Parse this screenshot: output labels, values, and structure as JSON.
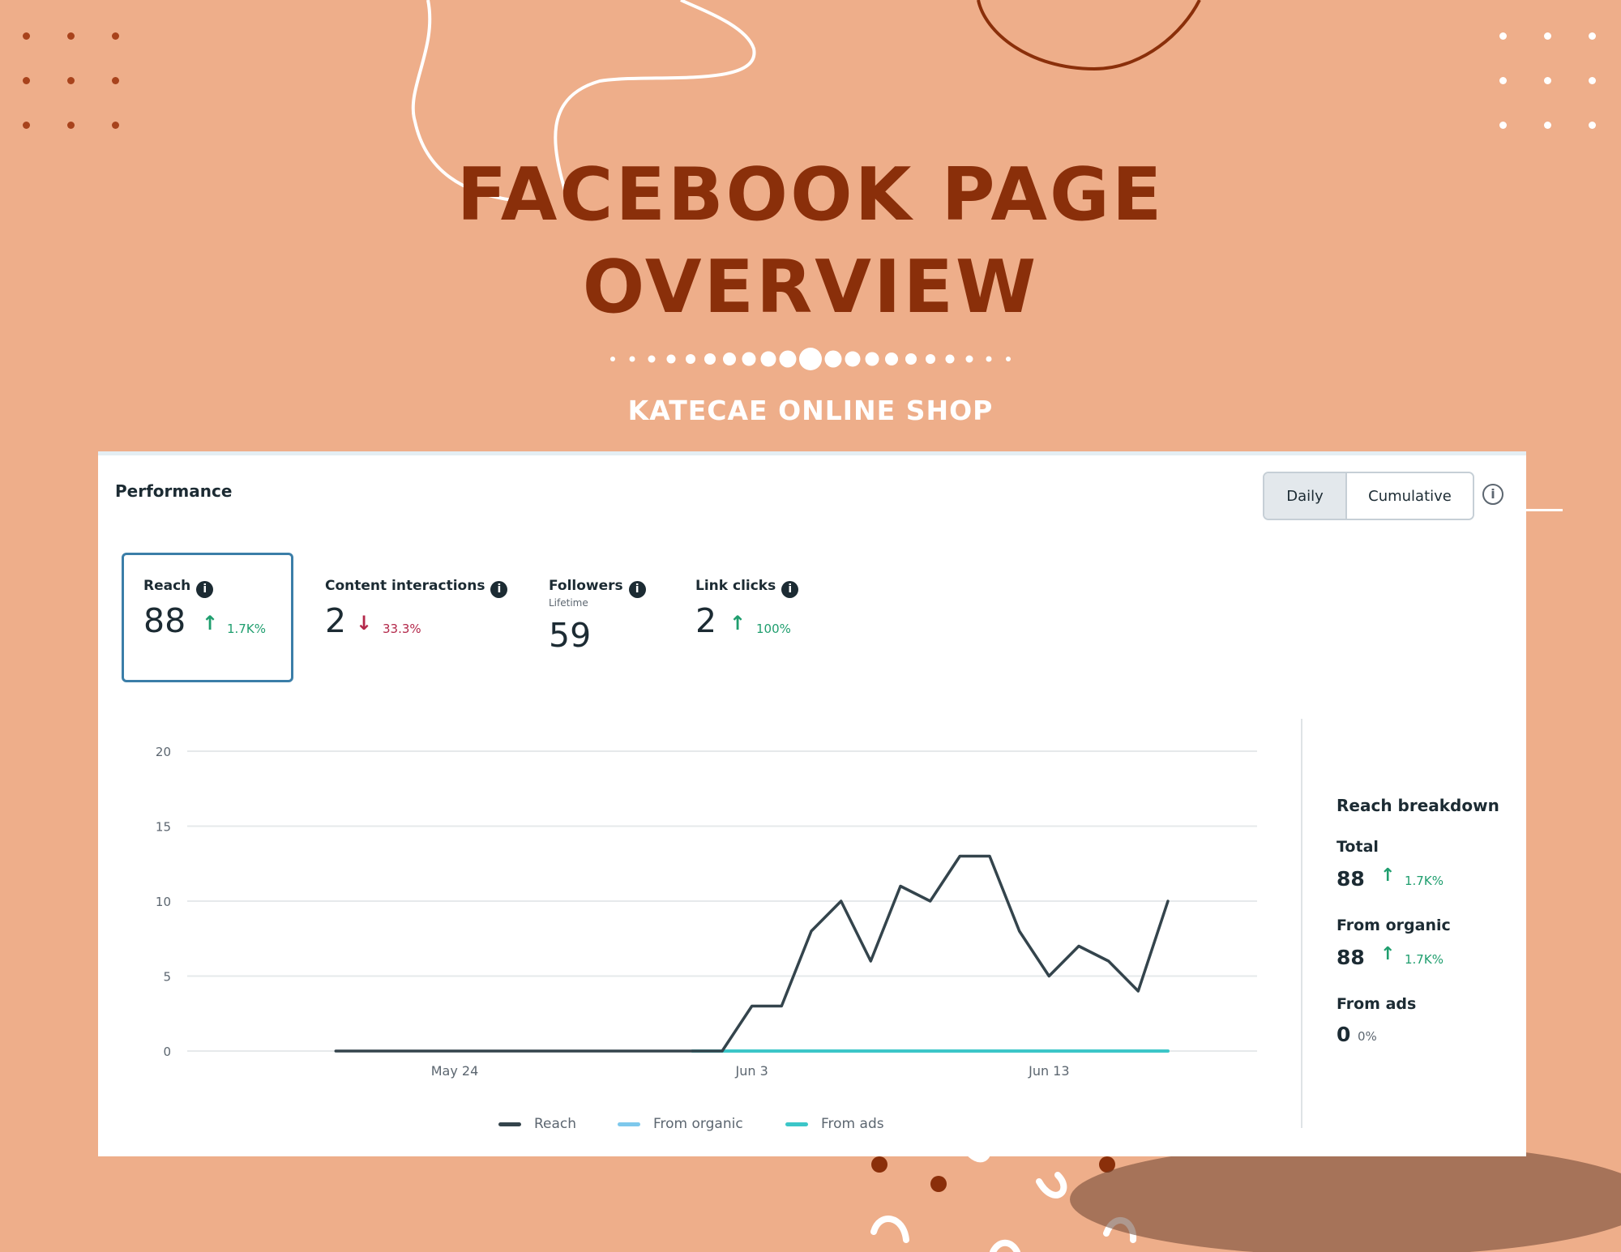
{
  "header": {
    "title_line1": "FACEBOOK PAGE",
    "title_line2": "OVERVIEW",
    "subtitle": "KATECAE ONLINE SHOP"
  },
  "colors": {
    "background": "#eeae8a",
    "title": "#8a2f0a",
    "accent_up": "#1f9e6e",
    "accent_down": "#b3284a",
    "reach_line": "#34444c",
    "organic_line": "#7ec8ec",
    "ads_line": "#3cc6c8"
  },
  "performance": {
    "title": "Performance",
    "toggle": {
      "daily": "Daily",
      "cumulative": "Cumulative",
      "selected": "Daily"
    },
    "info_icon": "info-icon",
    "metrics": [
      {
        "label": "Reach",
        "value": "88",
        "change": "1.7K%",
        "direction": "up",
        "selected": true
      },
      {
        "label": "Content interactions",
        "value": "2",
        "change": "33.3%",
        "direction": "down"
      },
      {
        "label": "Followers",
        "sublabel": "Lifetime",
        "value": "59"
      },
      {
        "label": "Link clicks",
        "value": "2",
        "change": "100%",
        "direction": "up"
      }
    ]
  },
  "breakdown": {
    "title": "Reach breakdown",
    "items": [
      {
        "label": "Total",
        "value": "88",
        "change": "1.7K%"
      },
      {
        "label": "From organic",
        "value": "88",
        "change": "1.7K%"
      },
      {
        "label": "From ads",
        "value": "0",
        "change": "0%"
      }
    ]
  },
  "chart_data": {
    "type": "line",
    "title": "",
    "ylim": [
      0,
      20
    ],
    "yticks": [
      0,
      5,
      10,
      15,
      20
    ],
    "xtick_labels": [
      "May 24",
      "Jun 3",
      "Jun 13"
    ],
    "xtick_positions": [
      9,
      19,
      29
    ],
    "grid": true,
    "legend_position": "bottom",
    "x": [
      0,
      1,
      2,
      3,
      4,
      5,
      6,
      7,
      8,
      9,
      10,
      11,
      12,
      13,
      14,
      15,
      16,
      17,
      18,
      19,
      20,
      21,
      22,
      23,
      24,
      25,
      26,
      27,
      28,
      29,
      30,
      31,
      32,
      33,
      34,
      35,
      36
    ],
    "series": [
      {
        "name": "Reach",
        "color": "#34444c",
        "values": [
          null,
          null,
          null,
          null,
          null,
          0,
          0,
          0,
          0,
          0,
          0,
          0,
          0,
          0,
          0,
          0,
          0,
          0,
          0,
          3,
          3,
          8,
          10,
          6,
          11,
          10,
          13,
          13,
          8,
          5,
          7,
          6,
          4,
          10,
          null,
          null,
          null
        ]
      },
      {
        "name": "From organic",
        "color": "#7ec8ec",
        "values": [
          null,
          null,
          null,
          null,
          null,
          0,
          0,
          0,
          0,
          0,
          0,
          0,
          0,
          0,
          0,
          0,
          0,
          0,
          0,
          3,
          3,
          8,
          10,
          6,
          11,
          10,
          13,
          13,
          8,
          5,
          7,
          6,
          4,
          10,
          null,
          null,
          null
        ]
      },
      {
        "name": "From ads",
        "color": "#3cc6c8",
        "values": [
          null,
          null,
          null,
          null,
          null,
          null,
          null,
          null,
          null,
          null,
          null,
          null,
          null,
          null,
          null,
          null,
          null,
          0,
          0,
          0,
          0,
          0,
          0,
          0,
          0,
          0,
          0,
          0,
          0,
          0,
          0,
          0,
          0,
          0,
          null,
          null,
          null
        ]
      }
    ]
  }
}
